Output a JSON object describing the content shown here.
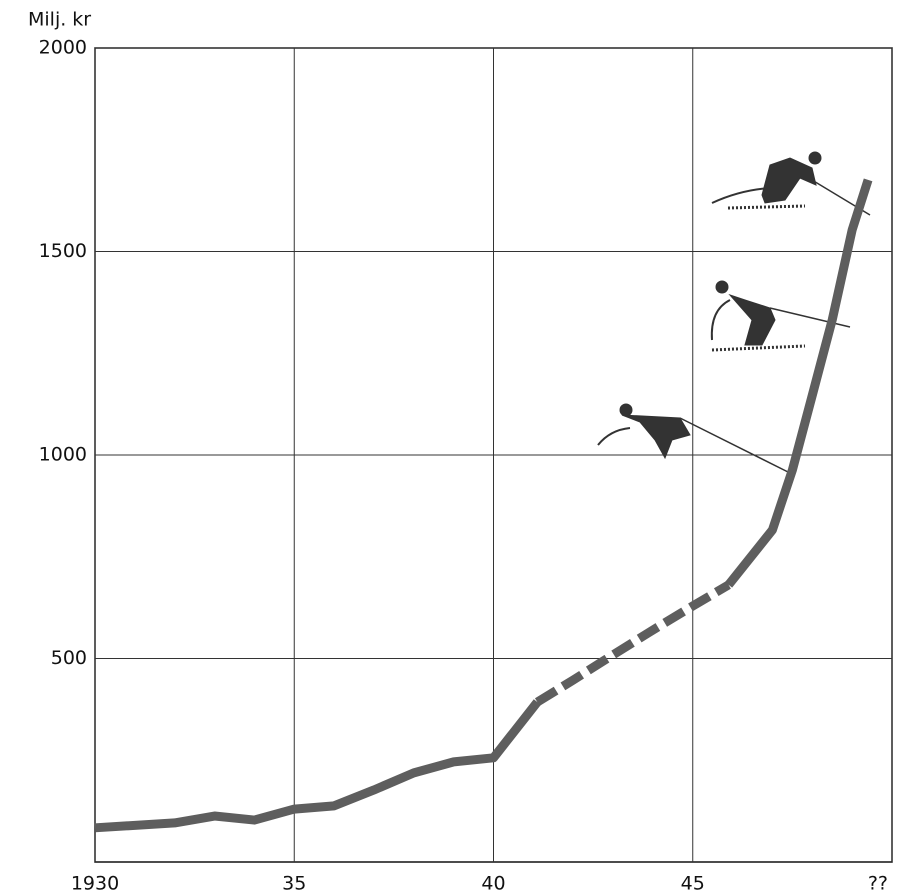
{
  "chart_data": {
    "type": "line",
    "y_label": "Milj. kr",
    "xlim": [
      1930,
      1950
    ],
    "xticks": [
      1930,
      {
        "value": 1935,
        "label": "35"
      },
      {
        "value": 1940,
        "label": "40"
      },
      {
        "value": 1945,
        "label": "45"
      },
      {
        "value": 1950,
        "label": "??"
      }
    ],
    "ylim": [
      0,
      2000
    ],
    "yticks": [
      500,
      1000,
      1500,
      2000
    ],
    "grid": true,
    "series": [
      {
        "color": "#5e5e5e",
        "dashed": false,
        "x": [
          1930,
          1932,
          1933,
          1934,
          1935,
          1936,
          1937,
          1938,
          1939,
          1940,
          1941.1
        ],
        "values": [
          84,
          96,
          113,
          103,
          130,
          138,
          177,
          219,
          246,
          256,
          393
        ]
      },
      {
        "color": "#5e5e5e",
        "dashed": true,
        "x": [
          1941.1,
          1942,
          1943,
          1944,
          1945,
          1945.9
        ],
        "values": [
          393,
          447,
          509,
          570,
          629,
          681
        ]
      },
      {
        "color": "#5e5e5e",
        "dashed": false,
        "x": [
          1945.9,
          1947,
          1947.5,
          1948,
          1948.5,
          1949,
          1949.4
        ],
        "values": [
          681,
          816,
          963,
          1147,
          1332,
          1553,
          1676
        ]
      }
    ]
  }
}
